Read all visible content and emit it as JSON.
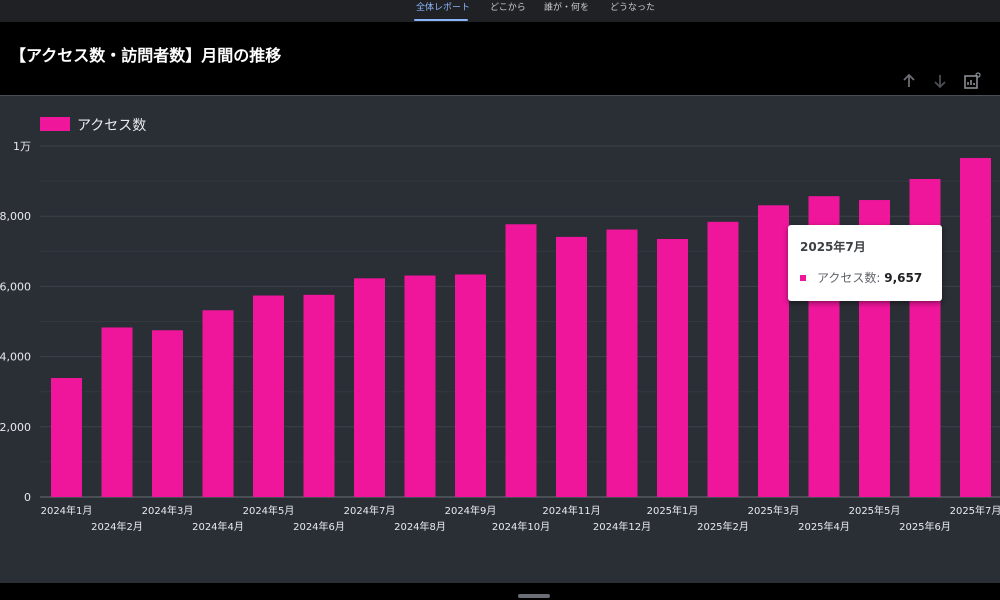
{
  "nav": {
    "tabs": [
      {
        "label": "全体レポート",
        "active": true
      },
      {
        "label": "どこから",
        "active": false
      },
      {
        "label": "誰が・何を",
        "active": false
      },
      {
        "label": "どうなった",
        "active": false
      }
    ]
  },
  "header": {
    "title": "【アクセス数・訪問者数】月間の推移",
    "tools": [
      "arrow-up-icon",
      "arrow-down-icon",
      "chart-settings-icon"
    ]
  },
  "chart_data": {
    "type": "bar",
    "categories": [
      "2024年1月",
      "2024年2月",
      "2024年3月",
      "2024年4月",
      "2024年5月",
      "2024年6月",
      "2024年7月",
      "2024年8月",
      "2024年9月",
      "2024年10月",
      "2024年11月",
      "2024年12月",
      "2025年1月",
      "2025年2月",
      "2025年3月",
      "2025年4月",
      "2025年5月",
      "2025年6月",
      "2025年7月"
    ],
    "series": [
      {
        "name": "アクセス数",
        "values": [
          3390,
          4830,
          4750,
          5320,
          5740,
          5760,
          6230,
          6310,
          6340,
          7770,
          7410,
          7620,
          7350,
          7840,
          8310,
          8570,
          8460,
          9060,
          9657
        ]
      }
    ],
    "ylim": [
      0,
      10000
    ],
    "yticks": [
      {
        "value": 0,
        "label": "0"
      },
      {
        "value": 2000,
        "label": "2,000"
      },
      {
        "value": 4000,
        "label": "4,000"
      },
      {
        "value": 6000,
        "label": "6,000"
      },
      {
        "value": 8000,
        "label": "8,000"
      },
      {
        "value": 10000,
        "label": "1万"
      }
    ],
    "color": "#f0169c",
    "grid": true,
    "legend": "top-left"
  },
  "tooltip": {
    "title": "2025年7月",
    "label": "アクセス数: ",
    "value": "9,657"
  }
}
